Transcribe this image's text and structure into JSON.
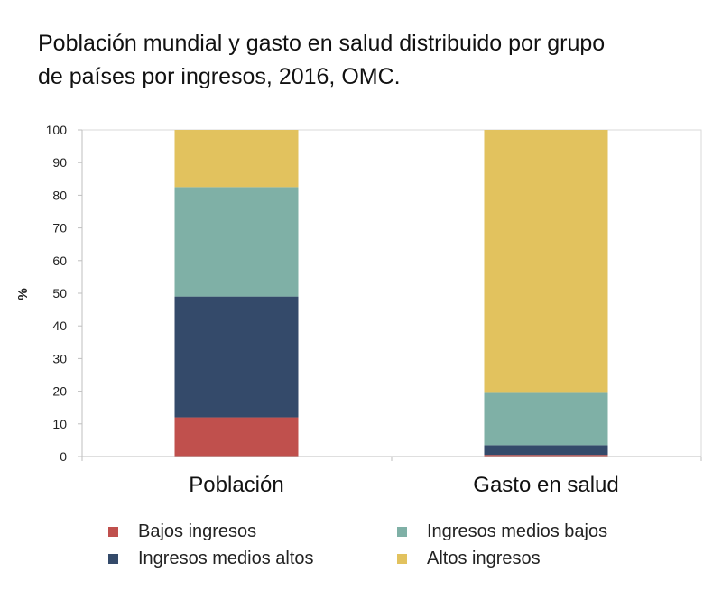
{
  "title": {
    "line1": "Población mundial y gasto en salud distribuido por grupo",
    "line2": "de países por ingresos, 2016, OMC."
  },
  "chart_data": {
    "type": "stacked_bar",
    "title": "Población mundial y gasto en salud distribuido por grupo de países por ingresos, 2016, OMC.",
    "categories": [
      "Población",
      "Gasto en salud"
    ],
    "ylabel": "%",
    "xlabel": "",
    "ylim": [
      0,
      100
    ],
    "yticks": [
      0,
      10,
      20,
      30,
      40,
      50,
      60,
      70,
      80,
      90,
      100
    ],
    "grid": false,
    "legend_position": "bottom",
    "series": [
      {
        "name": "Bajos ingresos",
        "color": "#c0504d",
        "values": [
          12,
          0.5
        ]
      },
      {
        "name": "Ingresos medios altos",
        "color": "#344a6a",
        "values": [
          37,
          3
        ]
      },
      {
        "name": "Ingresos medios bajos",
        "color": "#7fb0a6",
        "values": [
          33.5,
          16
        ]
      },
      {
        "name": "Altos ingresos",
        "color": "#e2c25e",
        "values": [
          17.5,
          80.5
        ]
      }
    ]
  },
  "legend": {
    "items": [
      {
        "label": "Bajos ingresos",
        "color": "#c0504d"
      },
      {
        "label": "Ingresos medios bajos",
        "color": "#7fb0a6"
      },
      {
        "label": "Ingresos medios altos",
        "color": "#344a6a"
      },
      {
        "label": "Altos ingresos",
        "color": "#e2c25e"
      }
    ]
  }
}
